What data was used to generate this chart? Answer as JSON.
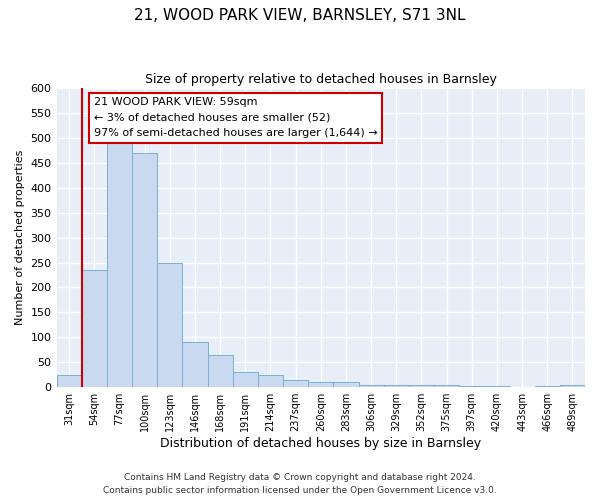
{
  "title": "21, WOOD PARK VIEW, BARNSLEY, S71 3NL",
  "subtitle": "Size of property relative to detached houses in Barnsley",
  "xlabel": "Distribution of detached houses by size in Barnsley",
  "ylabel": "Number of detached properties",
  "bar_color": "#c9d9ef",
  "bar_edge_color": "#7aafd4",
  "background_color": "#e8eef8",
  "grid_color": "#ffffff",
  "annotation_box_color": "#cc0000",
  "property_line_color": "#cc0000",
  "annotation_text": "21 WOOD PARK VIEW: 59sqm\n← 3% of detached houses are smaller (52)\n97% of semi-detached houses are larger (1,644) →",
  "bins": [
    31,
    54,
    77,
    100,
    123,
    146,
    168,
    191,
    214,
    237,
    260,
    283,
    306,
    329,
    352,
    375,
    397,
    420,
    443,
    466,
    489
  ],
  "counts": [
    25,
    235,
    490,
    470,
    250,
    90,
    65,
    30,
    25,
    15,
    10,
    10,
    5,
    5,
    4,
    4,
    3,
    3,
    1,
    3,
    5
  ],
  "ylim": [
    0,
    600
  ],
  "yticks": [
    0,
    50,
    100,
    150,
    200,
    250,
    300,
    350,
    400,
    450,
    500,
    550,
    600
  ],
  "footer": "Contains HM Land Registry data © Crown copyright and database right 2024.\nContains public sector information licensed under the Open Government Licence v3.0.",
  "figsize": [
    6.0,
    5.0
  ],
  "dpi": 100
}
